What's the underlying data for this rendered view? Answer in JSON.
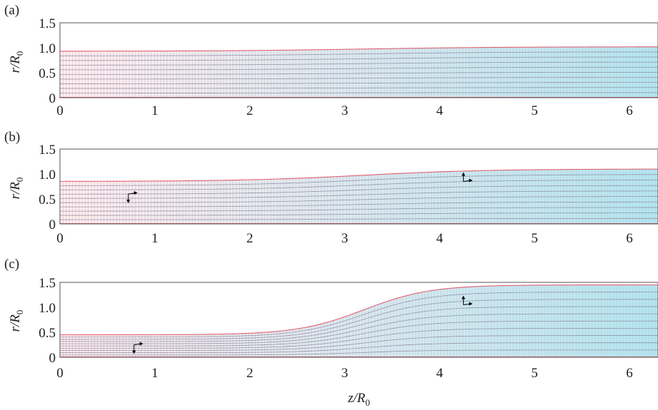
{
  "colors": {
    "grid_line": "#8a8aa0",
    "radial_line_start": "#e88a9a",
    "radial_line_end": "#8fd8e6",
    "fill_start": "#fdf0f2",
    "fill_end": "#b7e3ee",
    "boundary": "#e06070",
    "arrow": "#000000"
  },
  "x_axis": {
    "label_main": "z/R",
    "label_sub": "0",
    "ticks": [
      "0",
      "1",
      "2",
      "3",
      "4",
      "5",
      "6"
    ],
    "range": [
      0,
      6.3
    ]
  },
  "y_axis": {
    "label_main": "r/R",
    "label_sub": "0",
    "ticks": [
      "0",
      "0.5",
      "1.0",
      "1.5"
    ],
    "range": [
      0,
      1.5
    ]
  },
  "panels": [
    {
      "id": "a",
      "label": "(a)",
      "radius_start": 0.93,
      "radius_end": 1.02,
      "transition_center": 3.2,
      "transition_width": 3.0,
      "arrows": []
    },
    {
      "id": "b",
      "label": "(b)",
      "radius_start": 0.85,
      "radius_end": 1.1,
      "transition_center": 3.2,
      "transition_width": 2.6,
      "arrows": [
        {
          "z": 0.72,
          "r": 0.6
        },
        {
          "z": 4.25,
          "r": 0.85
        }
      ]
    },
    {
      "id": "c",
      "label": "(c)",
      "radius_start": 0.45,
      "radius_end": 1.45,
      "transition_center": 3.2,
      "transition_width": 1.4,
      "arrows": [
        {
          "z": 0.78,
          "r": 0.25
        },
        {
          "z": 4.25,
          "r": 1.05
        }
      ]
    }
  ]
}
